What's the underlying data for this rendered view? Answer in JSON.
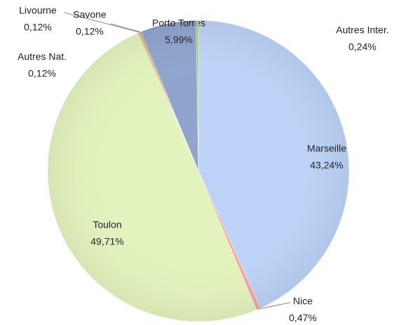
{
  "chart_data": {
    "type": "pie",
    "categories": [
      "Marseille",
      "Nice",
      "Toulon",
      "Autres Nat.",
      "Livourne",
      "Savone",
      "Porto Torres",
      "Autres Inter."
    ],
    "values": [
      43.24,
      0.47,
      49.71,
      0.12,
      0.12,
      0.12,
      5.99,
      0.24
    ],
    "value_labels": [
      "43,24%",
      "0,47%",
      "49,71%",
      "0,12%",
      "0,12%",
      "0,12%",
      "5,99%",
      "0,24%"
    ],
    "colors": [
      "#bcd3f7",
      "#f2a7a3",
      "#e3f3bd",
      "#e89a5a",
      "#c9a07a",
      "#b07a5a",
      "#8fa5cd",
      "#9fcf6a"
    ]
  }
}
